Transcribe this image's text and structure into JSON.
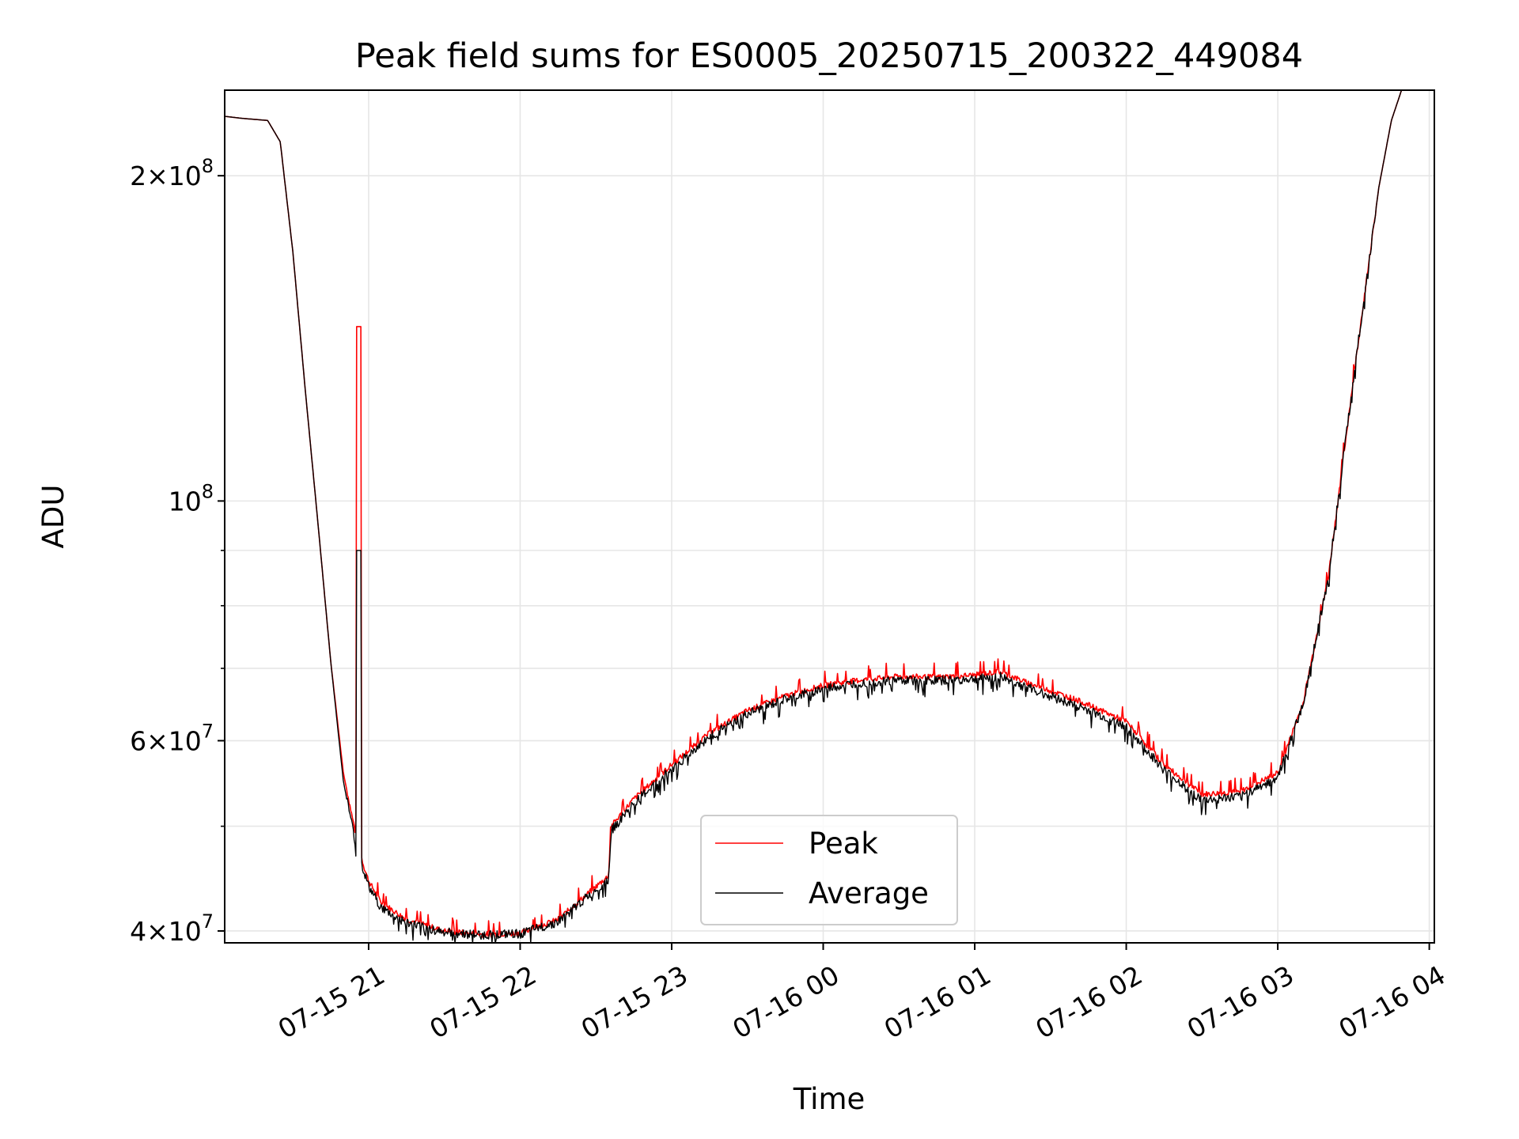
{
  "chart_data": {
    "type": "line",
    "title": "Peak field sums for ES0005_20250715_200322_449084",
    "xlabel": "Time",
    "ylabel": "ADU",
    "y_scale": "log",
    "grid": true,
    "legend_placement": "lower-center",
    "xlim": [
      "2025-07-15 20:03",
      "2025-07-16 04:02"
    ],
    "ylim": [
      39000000,
      240000000
    ],
    "x_ticks": [
      "07-15 21",
      "07-15 22",
      "07-15 23",
      "07-16 00",
      "07-16 01",
      "07-16 02",
      "07-16 03",
      "07-16 04"
    ],
    "y_ticks": [
      {
        "value": 40000000,
        "base": "4",
        "exp": "7"
      },
      {
        "value": 60000000,
        "base": "6",
        "exp": "7"
      },
      {
        "value": 100000000,
        "base": "",
        "exp": "8"
      },
      {
        "value": 200000000,
        "base": "2",
        "exp": "8"
      }
    ],
    "x": [
      "2025-07-15 20:03",
      "2025-07-15 20:10",
      "2025-07-15 20:20",
      "2025-07-15 20:25",
      "2025-07-15 20:30",
      "2025-07-15 20:35",
      "2025-07-15 20:40",
      "2025-07-15 20:45",
      "2025-07-15 20:50",
      "2025-07-15 20:55",
      "2025-07-15 20:58",
      "2025-07-15 21:00",
      "2025-07-15 21:05",
      "2025-07-15 21:15",
      "2025-07-15 21:30",
      "2025-07-15 21:45",
      "2025-07-15 22:00",
      "2025-07-15 22:15",
      "2025-07-15 22:35",
      "2025-07-15 22:36",
      "2025-07-15 22:45",
      "2025-07-15 23:00",
      "2025-07-15 23:15",
      "2025-07-15 23:30",
      "2025-07-15 23:45",
      "2025-07-16 00:00",
      "2025-07-16 00:15",
      "2025-07-16 00:30",
      "2025-07-16 00:45",
      "2025-07-16 01:00",
      "2025-07-16 01:10",
      "2025-07-16 01:20",
      "2025-07-16 01:40",
      "2025-07-16 02:00",
      "2025-07-16 02:15",
      "2025-07-16 02:30",
      "2025-07-16 02:45",
      "2025-07-16 03:00",
      "2025-07-16 03:10",
      "2025-07-16 03:20",
      "2025-07-16 03:30",
      "2025-07-16 03:40",
      "2025-07-16 03:45",
      "2025-07-16 03:49"
    ],
    "series": [
      {
        "name": "Peak",
        "color": "#ff0000",
        "values": [
          227000000,
          226000000,
          225000000,
          215000000,
          170000000,
          126000000,
          95000000,
          71000000,
          56000000,
          49000000,
          46000000,
          44500000,
          42500000,
          41000000,
          40000000,
          39700000,
          39800000,
          41000000,
          45000000,
          50000000,
          53000000,
          57000000,
          61000000,
          64000000,
          66000000,
          67500000,
          68300000,
          68800000,
          68700000,
          69000000,
          69500000,
          68000000,
          65500000,
          62500000,
          57000000,
          53500000,
          53800000,
          56000000,
          65000000,
          85000000,
          130000000,
          195000000,
          225000000,
          240000000
        ]
      },
      {
        "name": "Average",
        "color": "#000000",
        "values": [
          227000000,
          226000000,
          225000000,
          215000000,
          170000000,
          126000000,
          95000000,
          71000000,
          55000000,
          48000000,
          45500000,
          44000000,
          42000000,
          40700000,
          39900000,
          39650000,
          39750000,
          40800000,
          44700000,
          49500000,
          52500000,
          56500000,
          60500000,
          63500000,
          65500000,
          67000000,
          67900000,
          68300000,
          68200000,
          68400000,
          68800000,
          67300000,
          64700000,
          61800000,
          56300000,
          52800000,
          53200000,
          55500000,
          64800000,
          85000000,
          130000000,
          195000000,
          225000000,
          240000000
        ]
      }
    ]
  }
}
